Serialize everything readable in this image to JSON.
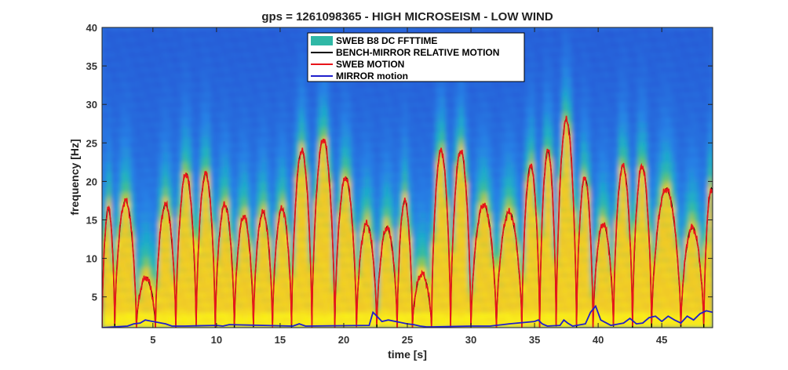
{
  "chart_data": {
    "type": "line",
    "title": "gps = 1261098365 - HIGH MICROSEISM - LOW WIND",
    "xlabel": "time [s]",
    "ylabel": "frequency [Hz]",
    "xlim": [
      1,
      49
    ],
    "ylim": [
      1,
      40
    ],
    "xticks": [
      5,
      10,
      15,
      20,
      25,
      30,
      35,
      40,
      45
    ],
    "yticks": [
      5,
      10,
      15,
      20,
      25,
      30,
      35,
      40
    ],
    "grid": false,
    "legend_position": "top-center",
    "background": "spectrogram",
    "legend": [
      {
        "label": "SWEB B8 DC  FFTTIME",
        "color": "#2fb8a6",
        "kind": "patch"
      },
      {
        "label": "BENCH-MIRROR RELATIVE MOTION",
        "color": "#000000",
        "kind": "line"
      },
      {
        "label": "SWEB MOTION",
        "color": "#e8141a",
        "kind": "line"
      },
      {
        "label": "MIRROR motion",
        "color": "#1f1fcc",
        "kind": "line"
      }
    ],
    "arch_peaks": [
      {
        "t0": 1.0,
        "t1": 2.0,
        "peak": 16.5
      },
      {
        "t0": 2.0,
        "t1": 3.7,
        "peak": 17.5
      },
      {
        "t0": 3.7,
        "t1": 5.2,
        "peak": 7.5
      },
      {
        "t0": 5.2,
        "t1": 6.8,
        "peak": 17.0
      },
      {
        "t0": 6.8,
        "t1": 8.4,
        "peak": 21.0
      },
      {
        "t0": 8.4,
        "t1": 9.9,
        "peak": 21.0
      },
      {
        "t0": 9.9,
        "t1": 11.4,
        "peak": 17.0
      },
      {
        "t0": 11.4,
        "t1": 12.9,
        "peak": 15.5
      },
      {
        "t0": 12.9,
        "t1": 14.4,
        "peak": 16.0
      },
      {
        "t0": 14.4,
        "t1": 15.9,
        "peak": 16.5
      },
      {
        "t0": 15.9,
        "t1": 17.5,
        "peak": 24.0
      },
      {
        "t0": 17.5,
        "t1": 19.3,
        "peak": 25.5
      },
      {
        "t0": 19.3,
        "t1": 21.0,
        "peak": 20.5
      },
      {
        "t0": 21.0,
        "t1": 22.6,
        "peak": 14.5
      },
      {
        "t0": 22.6,
        "t1": 24.2,
        "peak": 14.0
      },
      {
        "t0": 24.2,
        "t1": 25.4,
        "peak": 17.5
      },
      {
        "t0": 25.4,
        "t1": 26.9,
        "peak": 8.0
      },
      {
        "t0": 26.9,
        "t1": 28.4,
        "peak": 24.0
      },
      {
        "t0": 28.4,
        "t1": 30.0,
        "peak": 24.0
      },
      {
        "t0": 30.0,
        "t1": 32.0,
        "peak": 17.0
      },
      {
        "t0": 32.0,
        "t1": 34.0,
        "peak": 16.0
      },
      {
        "t0": 34.0,
        "t1": 35.4,
        "peak": 22.0
      },
      {
        "t0": 35.4,
        "t1": 36.7,
        "peak": 24.0
      },
      {
        "t0": 36.7,
        "t1": 38.3,
        "peak": 28.0
      },
      {
        "t0": 38.3,
        "t1": 39.6,
        "peak": 20.5
      },
      {
        "t0": 39.6,
        "t1": 41.2,
        "peak": 14.5
      },
      {
        "t0": 41.2,
        "t1": 42.7,
        "peak": 22.0
      },
      {
        "t0": 42.7,
        "t1": 44.2,
        "peak": 22.0
      },
      {
        "t0": 44.2,
        "t1": 46.5,
        "peak": 19.0
      },
      {
        "t0": 46.5,
        "t1": 48.3,
        "peak": 14.0
      },
      {
        "t0": 48.3,
        "t1": 49.5,
        "peak": 19.0
      }
    ],
    "mirror_motion": {
      "name": "MIRROR motion",
      "x": [
        1.0,
        3.0,
        3.5,
        4.0,
        4.4,
        5.0,
        6.0,
        6.5,
        7.5,
        10.0,
        10.5,
        11.0,
        16.0,
        16.5,
        17.0,
        22.0,
        22.3,
        22.6,
        23.0,
        23.5,
        25.0,
        25.5,
        26.0,
        26.5,
        27.0,
        30.0,
        31.5,
        32.5,
        33.0,
        35.0,
        35.3,
        35.6,
        36.0,
        37.0,
        37.3,
        37.6,
        38.0,
        39.0,
        39.4,
        39.8,
        40.2,
        41.0,
        42.0,
        42.5,
        43.0,
        43.5,
        44.0,
        44.5,
        45.0,
        45.5,
        46.0,
        46.5,
        47.0,
        47.5,
        48.0,
        48.5,
        49.0
      ],
      "y": [
        1.0,
        1.2,
        1.5,
        1.6,
        2.0,
        1.8,
        1.5,
        1.2,
        1.2,
        1.3,
        1.2,
        1.4,
        1.2,
        1.5,
        1.2,
        1.3,
        3.0,
        2.5,
        1.8,
        2.0,
        1.5,
        1.4,
        1.2,
        1.1,
        1.1,
        1.2,
        1.2,
        1.4,
        1.5,
        1.8,
        2.0,
        1.5,
        1.2,
        1.3,
        2.0,
        1.6,
        1.2,
        1.5,
        3.0,
        3.8,
        2.0,
        1.3,
        1.6,
        2.2,
        1.5,
        1.6,
        2.3,
        2.5,
        1.8,
        2.5,
        2.0,
        1.6,
        2.5,
        2.0,
        2.8,
        3.2,
        3.0
      ]
    }
  }
}
